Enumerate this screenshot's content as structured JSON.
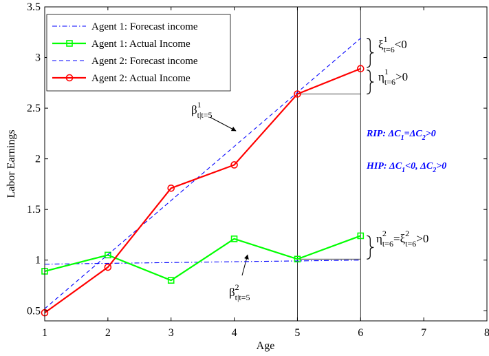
{
  "chart_data": {
    "type": "line",
    "xlabel": "Age",
    "ylabel": "Labor Earnings",
    "xlim": [
      1,
      8
    ],
    "ylim": [
      0.4,
      3.5
    ],
    "x_ticks": [
      "1",
      "2",
      "3",
      "4",
      "5",
      "6",
      "7",
      "8"
    ],
    "y_ticks": [
      "0.5",
      "1",
      "1.5",
      "2",
      "2.5",
      "3",
      "3.5"
    ],
    "grid": false,
    "legend_position": "top-left",
    "series": [
      {
        "name": "Agent 1: Forecast income",
        "style": "dashdot",
        "color": "#0000ff",
        "marker": "none",
        "x": [
          1,
          6
        ],
        "y": [
          0.96,
          1.0
        ]
      },
      {
        "name": "Agent 1: Actual Income",
        "style": "solid",
        "color": "#00ff00",
        "marker": "square",
        "x": [
          1,
          2,
          3,
          4,
          5,
          6
        ],
        "y": [
          0.89,
          1.05,
          0.8,
          1.21,
          1.01,
          1.24
        ]
      },
      {
        "name": "Agent 2: Forecast income",
        "style": "dashed",
        "color": "#0000ff",
        "marker": "none",
        "x": [
          1,
          6
        ],
        "y": [
          0.52,
          3.19
        ]
      },
      {
        "name": "Agent 2: Actual Income",
        "style": "solid",
        "color": "#ff0000",
        "marker": "circle",
        "x": [
          1,
          2,
          3,
          4,
          5,
          6
        ],
        "y": [
          0.48,
          0.93,
          1.71,
          1.94,
          2.64,
          2.89
        ]
      }
    ],
    "vertical_lines": [
      5,
      6
    ],
    "annotations": {
      "xi1": "ξ",
      "xi1_sup": "1",
      "xi1_sub": "t=6",
      "xi1_tail": "<0",
      "eta1": "η",
      "eta1_sup": "1",
      "eta1_sub": "t=6",
      "eta1_tail": ">0",
      "beta1": "β",
      "beta1_sup": "1",
      "beta1_sub": "t|t=5",
      "beta2": "β",
      "beta2_sup": "2",
      "beta2_sub": "t|t=5",
      "eta2": "η",
      "eta2_sup": "2",
      "eta2_sub": "t=6",
      "eta2_eq": "=ξ",
      "eta2_eq_sup": "2",
      "eta2_eq_sub": "t=6",
      "eta2_tail": ">0",
      "rip": "RIP: ΔC",
      "rip_sub1": "1",
      "rip_mid": "=ΔC",
      "rip_sub2": "2",
      "rip_tail": ">0",
      "hip": "HIP: ΔC",
      "hip_sub1": "1",
      "hip_mid": "<0, ΔC",
      "hip_sub2": "2",
      "hip_tail": ">0",
      "label_color": "#0000ff"
    }
  }
}
